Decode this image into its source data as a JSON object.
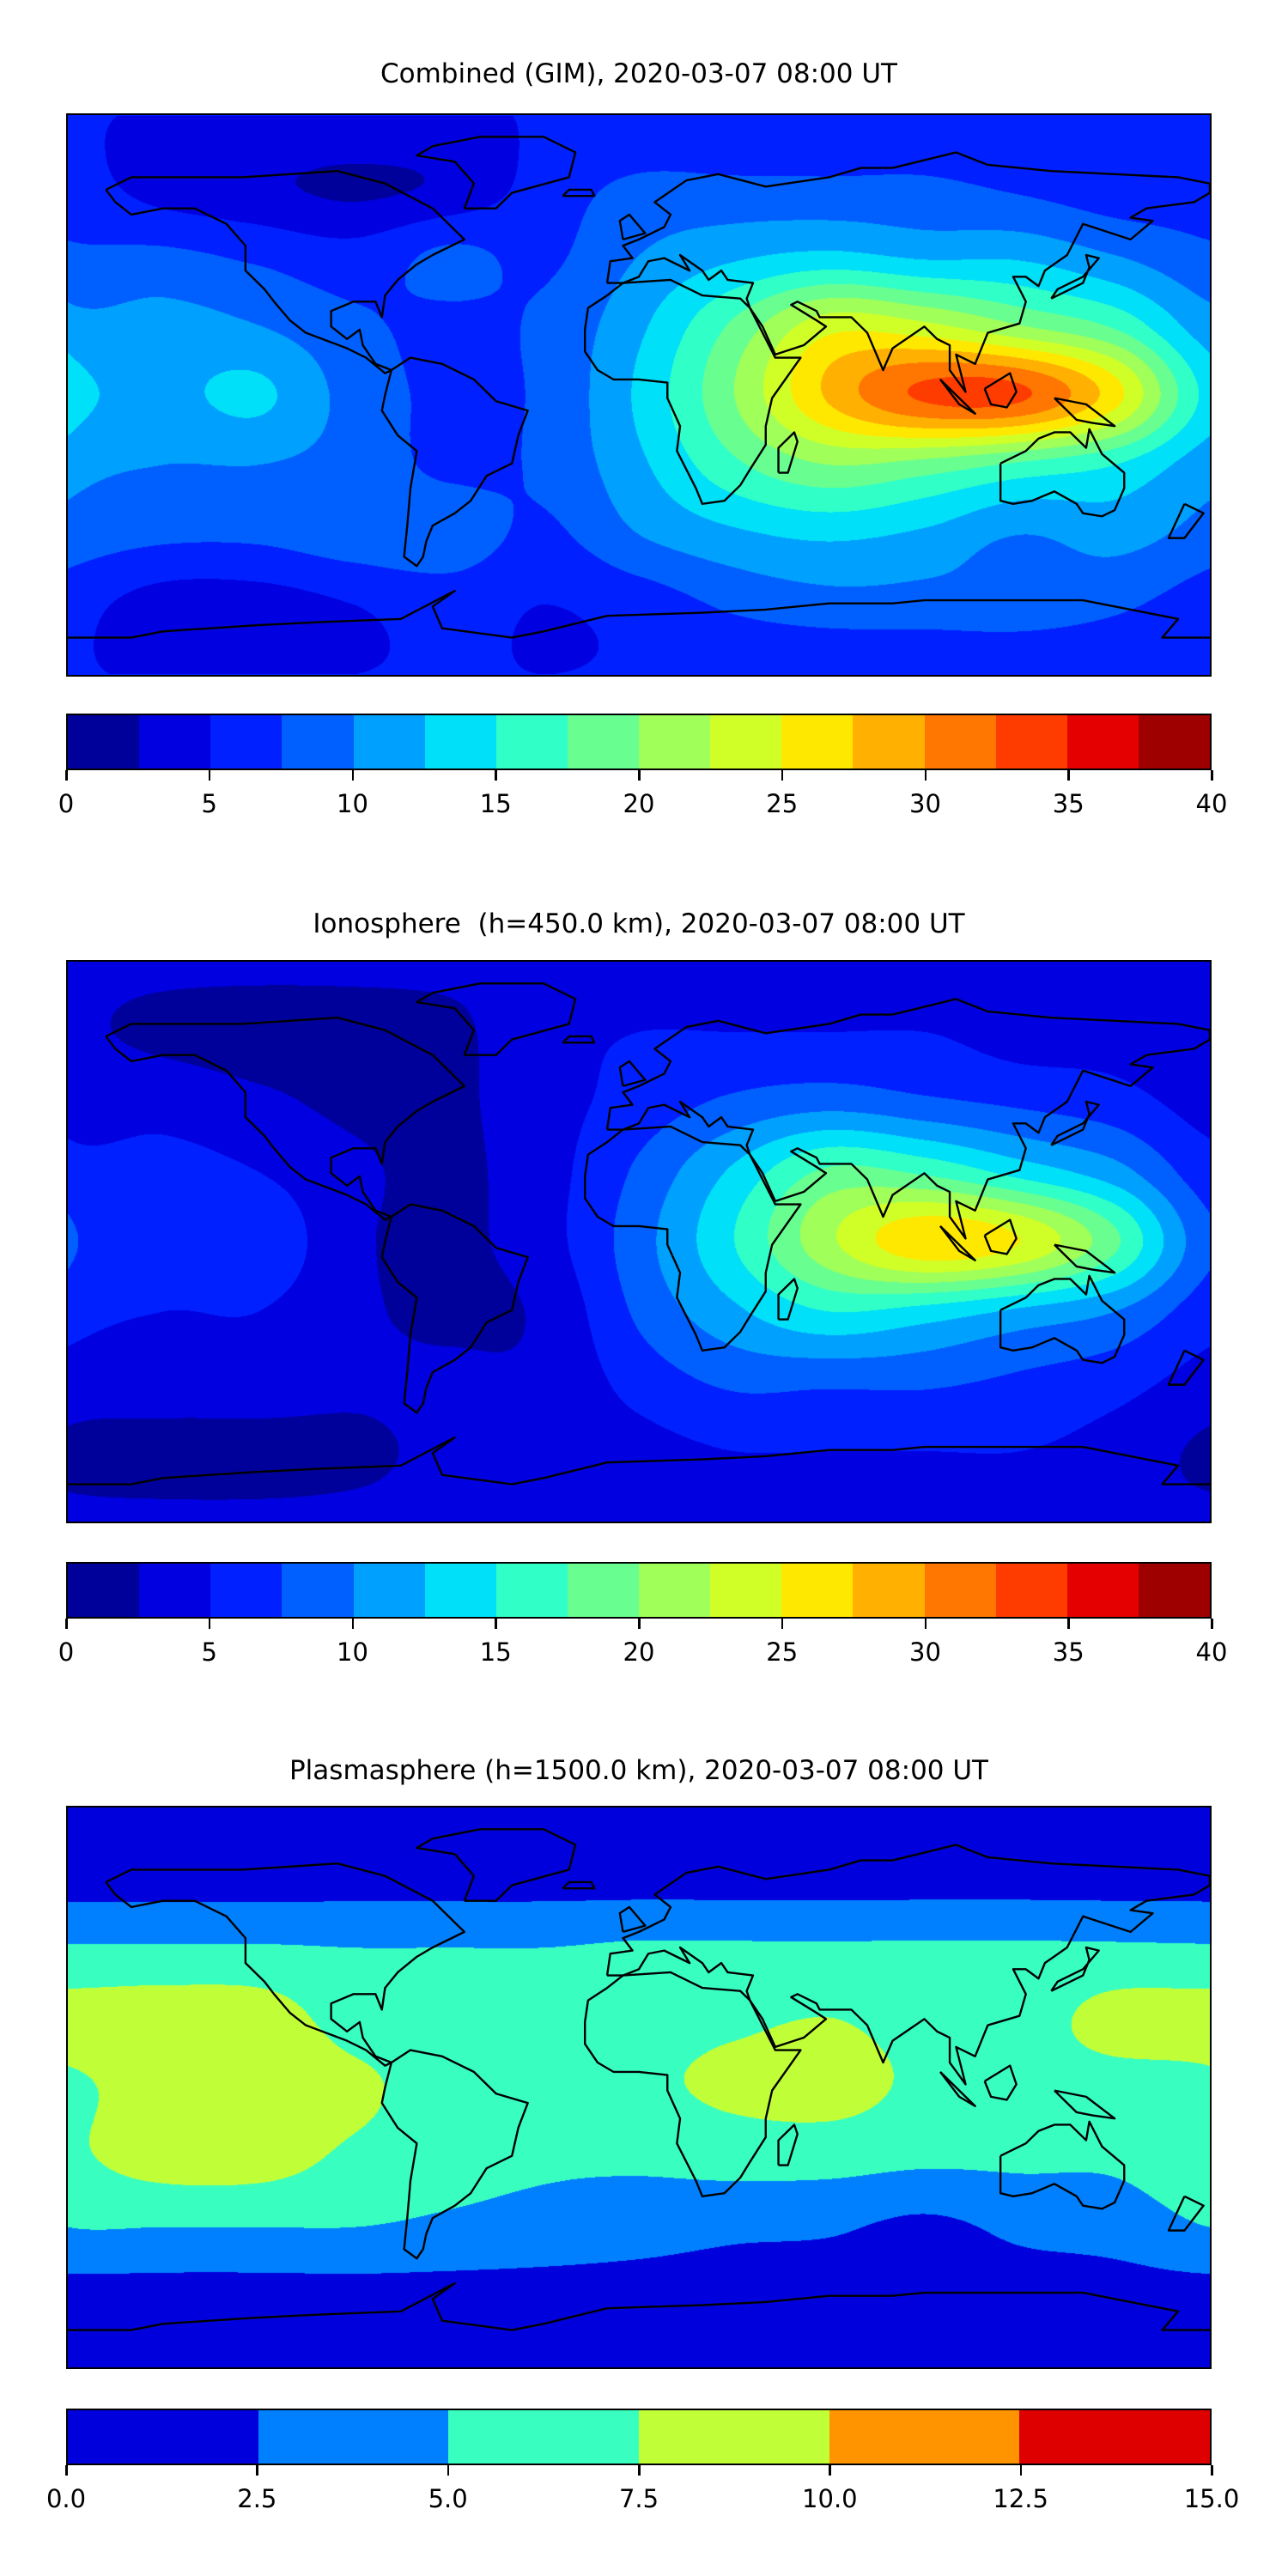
{
  "chart_data": [
    {
      "type": "heatmap",
      "subtype": "filled-contour-map",
      "title": "Combined (GIM), 2020-03-07 08:00 UT",
      "xlim": [
        -180,
        180
      ],
      "ylim": [
        -90,
        90
      ],
      "levels": [
        0,
        2.5,
        5,
        7.5,
        10,
        12.5,
        15,
        17.5,
        20,
        22.5,
        25,
        27.5,
        30,
        32.5,
        35,
        37.5,
        40
      ],
      "colors": [
        "#00009a",
        "#0000e0",
        "#0020ff",
        "#0060ff",
        "#00a0ff",
        "#00e0f8",
        "#30ffc8",
        "#68ff90",
        "#a0ff58",
        "#d0ff28",
        "#ffe800",
        "#ffb000",
        "#ff7600",
        "#ff3c00",
        "#e40000",
        "#9e0000"
      ],
      "colorbar_ticks": [
        "0",
        "5",
        "10",
        "15",
        "20",
        "25",
        "30",
        "35",
        "40"
      ],
      "colorbar_tick_values": [
        0,
        5,
        10,
        15,
        20,
        25,
        30,
        35,
        40
      ],
      "grid_lon": [
        -180,
        -150,
        -120,
        -90,
        -60,
        -30,
        0,
        30,
        60,
        90,
        120,
        150
      ],
      "grid_lat": [
        90,
        67.5,
        45,
        22.5,
        0,
        -22.5,
        -45,
        -67.5,
        -90
      ],
      "values": [
        [
          5,
          5,
          5,
          5,
          5,
          5,
          5,
          5,
          5,
          5,
          5,
          5
        ],
        [
          6,
          4,
          3,
          2,
          3,
          6,
          8,
          8,
          8,
          8,
          7,
          6
        ],
        [
          8,
          8,
          7,
          6,
          8,
          7,
          10,
          12,
          13,
          12,
          12,
          10
        ],
        [
          11,
          11,
          10,
          8,
          7,
          8,
          12,
          18,
          24,
          23,
          20,
          17
        ],
        [
          14,
          12,
          13,
          9,
          7,
          8,
          13,
          20,
          28,
          33,
          33,
          26
        ],
        [
          11,
          10,
          10,
          9,
          7,
          8,
          12,
          17,
          20,
          19,
          17,
          15
        ],
        [
          9,
          8,
          8,
          9,
          9,
          7,
          10,
          12,
          13,
          12,
          10,
          11
        ],
        [
          6,
          4,
          4,
          5,
          6,
          5,
          6,
          8,
          9,
          9,
          9,
          8
        ],
        [
          5,
          5,
          5,
          5,
          5,
          5,
          5,
          5,
          5,
          5,
          5,
          5
        ]
      ]
    },
    {
      "type": "heatmap",
      "subtype": "filled-contour-map",
      "title": "Ionosphere  (h=450.0 km), 2020-03-07 08:00 UT",
      "xlim": [
        -180,
        180
      ],
      "ylim": [
        -90,
        90
      ],
      "levels": [
        0,
        2.5,
        5,
        7.5,
        10,
        12.5,
        15,
        17.5,
        20,
        22.5,
        25,
        27.5,
        30,
        32.5,
        35,
        37.5,
        40
      ],
      "colors": [
        "#00009a",
        "#0000e0",
        "#0020ff",
        "#0060ff",
        "#00a0ff",
        "#00e0f8",
        "#30ffc8",
        "#68ff90",
        "#a0ff58",
        "#d0ff28",
        "#ffe800",
        "#ffb000",
        "#ff7600",
        "#ff3c00",
        "#e40000",
        "#9e0000"
      ],
      "colorbar_ticks": [
        "0",
        "5",
        "10",
        "15",
        "20",
        "25",
        "30",
        "35",
        "40"
      ],
      "colorbar_tick_values": [
        0,
        5,
        10,
        15,
        20,
        25,
        30,
        35,
        40
      ],
      "grid_lon": [
        -180,
        -150,
        -120,
        -90,
        -60,
        -30,
        0,
        30,
        60,
        90,
        120,
        150
      ],
      "grid_lat": [
        90,
        67.5,
        45,
        22.5,
        0,
        -22.5,
        -45,
        -67.5,
        -90
      ],
      "values": [
        [
          3,
          3,
          3,
          3,
          3,
          3,
          3,
          3,
          3,
          3,
          3,
          3
        ],
        [
          3,
          2,
          1.5,
          1.5,
          2,
          4,
          5,
          5,
          5,
          5,
          4,
          4
        ],
        [
          4,
          4,
          3,
          2,
          2,
          4,
          6,
          8,
          9,
          8,
          7,
          6
        ],
        [
          6,
          6,
          5,
          3,
          2,
          4,
          8,
          13,
          18,
          17,
          14,
          11
        ],
        [
          8,
          7,
          7,
          3,
          2,
          4,
          9,
          15,
          22,
          27,
          25,
          18
        ],
        [
          6,
          5,
          5,
          3,
          2,
          3,
          8,
          12,
          15,
          14,
          12,
          10
        ],
        [
          4,
          4,
          4,
          3,
          3,
          3,
          6,
          8,
          8,
          8,
          7,
          6
        ],
        [
          2,
          1.5,
          1.5,
          2,
          3,
          3,
          4,
          5,
          5,
          5,
          5,
          4
        ],
        [
          3,
          3,
          3,
          3,
          3,
          3,
          3,
          3,
          3,
          3,
          3,
          3
        ]
      ]
    },
    {
      "type": "heatmap",
      "subtype": "filled-contour-map",
      "title": "Plasmasphere (h=1500.0 km), 2020-03-07 08:00 UT",
      "xlim": [
        -180,
        180
      ],
      "ylim": [
        -90,
        90
      ],
      "levels": [
        0,
        2.5,
        5,
        7.5,
        10,
        12.5,
        15
      ],
      "colors": [
        "#0000dd",
        "#0080ff",
        "#38ffc0",
        "#c0ff38",
        "#ff9400",
        "#de0000"
      ],
      "colorbar_ticks": [
        "0.0",
        "2.5",
        "5.0",
        "7.5",
        "10.0",
        "12.5",
        "15.0"
      ],
      "colorbar_tick_values": [
        0,
        2.5,
        5,
        7.5,
        10,
        12.5,
        15
      ],
      "grid_lon": [
        -180,
        -150,
        -120,
        -90,
        -60,
        -30,
        0,
        30,
        60,
        90,
        120,
        150
      ],
      "grid_lat": [
        90,
        67.5,
        45,
        22.5,
        0,
        -22.5,
        -45,
        -67.5,
        -90
      ],
      "values": [
        [
          1.5,
          1.5,
          1.5,
          1.5,
          1.5,
          1.5,
          1.5,
          1.5,
          1.5,
          1.5,
          1.5,
          1.5
        ],
        [
          1.5,
          1.5,
          1.5,
          1.5,
          1.5,
          1.5,
          1.5,
          1.5,
          1.5,
          1.5,
          1.5,
          1.5
        ],
        [
          5.2,
          5.2,
          5.2,
          5,
          5,
          5,
          5.3,
          5.3,
          5.3,
          5.3,
          5.3,
          5.3
        ],
        [
          8.5,
          9,
          8.8,
          6.5,
          6.5,
          6.5,
          6.5,
          7,
          7.5,
          6.5,
          6.5,
          8.3
        ],
        [
          7,
          8.8,
          9,
          8,
          6.5,
          6.5,
          7,
          8,
          8.4,
          7,
          6.5,
          6.5
        ],
        [
          7,
          8.6,
          8.6,
          7,
          6,
          5.5,
          5.5,
          6,
          6,
          5.5,
          5.5,
          5.5
        ],
        [
          5,
          5,
          5,
          5,
          4.5,
          4,
          3.5,
          3,
          2.8,
          2,
          3,
          3.5
        ],
        [
          1.5,
          1.5,
          1.5,
          1.5,
          1.5,
          1.5,
          1.5,
          1.5,
          1.5,
          1.5,
          1.5,
          1.5
        ],
        [
          1,
          1,
          1,
          1,
          1,
          1,
          1,
          1,
          1,
          1,
          1,
          1
        ]
      ]
    }
  ]
}
